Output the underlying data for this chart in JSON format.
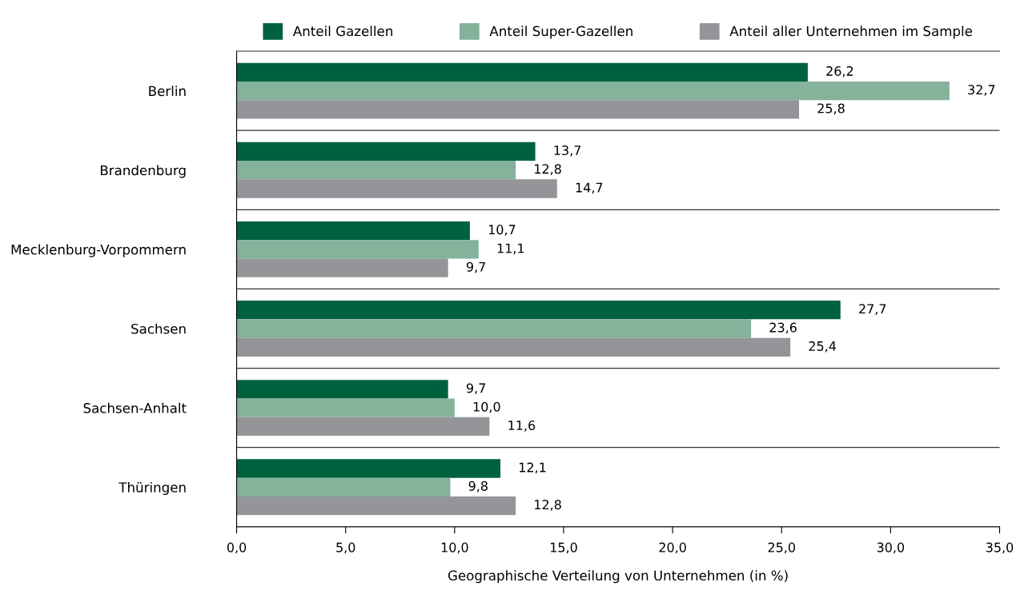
{
  "chart_data": {
    "type": "bar",
    "orientation": "horizontal",
    "xlabel": "Geographische Verteilung von Unternehmen (in %)",
    "categories": [
      "Berlin",
      "Brandenburg",
      "Mecklenburg-Vorpommern",
      "Sachsen",
      "Sachsen-Anhalt",
      "Thüringen"
    ],
    "series": [
      {
        "name": "Anteil Gazellen",
        "color": "#00613f",
        "values": [
          26.2,
          13.7,
          10.7,
          27.7,
          9.7,
          12.1
        ],
        "value_labels": [
          "26,2",
          "13,7",
          "10,7",
          "27,7",
          "9,7",
          "12,1"
        ]
      },
      {
        "name": "Anteil Super-Gazellen",
        "color": "#84b29b",
        "values": [
          32.7,
          12.8,
          11.1,
          23.6,
          10.0,
          9.8
        ],
        "value_labels": [
          "32,7",
          "12,8",
          "11,1",
          "23,6",
          "10,0",
          "9,8"
        ]
      },
      {
        "name": "Anteil aller Unternehmen im Sample",
        "color": "#939598",
        "values": [
          25.8,
          14.7,
          9.7,
          25.4,
          11.6,
          12.8
        ],
        "value_labels": [
          "25,8",
          "14,7",
          "9,7",
          "25,4",
          "11,6",
          "12,8"
        ]
      }
    ],
    "xlim": [
      0,
      35
    ],
    "xticks": [
      {
        "value": 0,
        "label": "0,0"
      },
      {
        "value": 5,
        "label": "5,0"
      },
      {
        "value": 10,
        "label": "10,0"
      },
      {
        "value": 15,
        "label": "15,0"
      },
      {
        "value": 20,
        "label": "20,0"
      },
      {
        "value": 25,
        "label": "25,0"
      },
      {
        "value": 30,
        "label": "30,0"
      },
      {
        "value": 35,
        "label": "35,0"
      }
    ],
    "grid": false,
    "legend": "top"
  }
}
